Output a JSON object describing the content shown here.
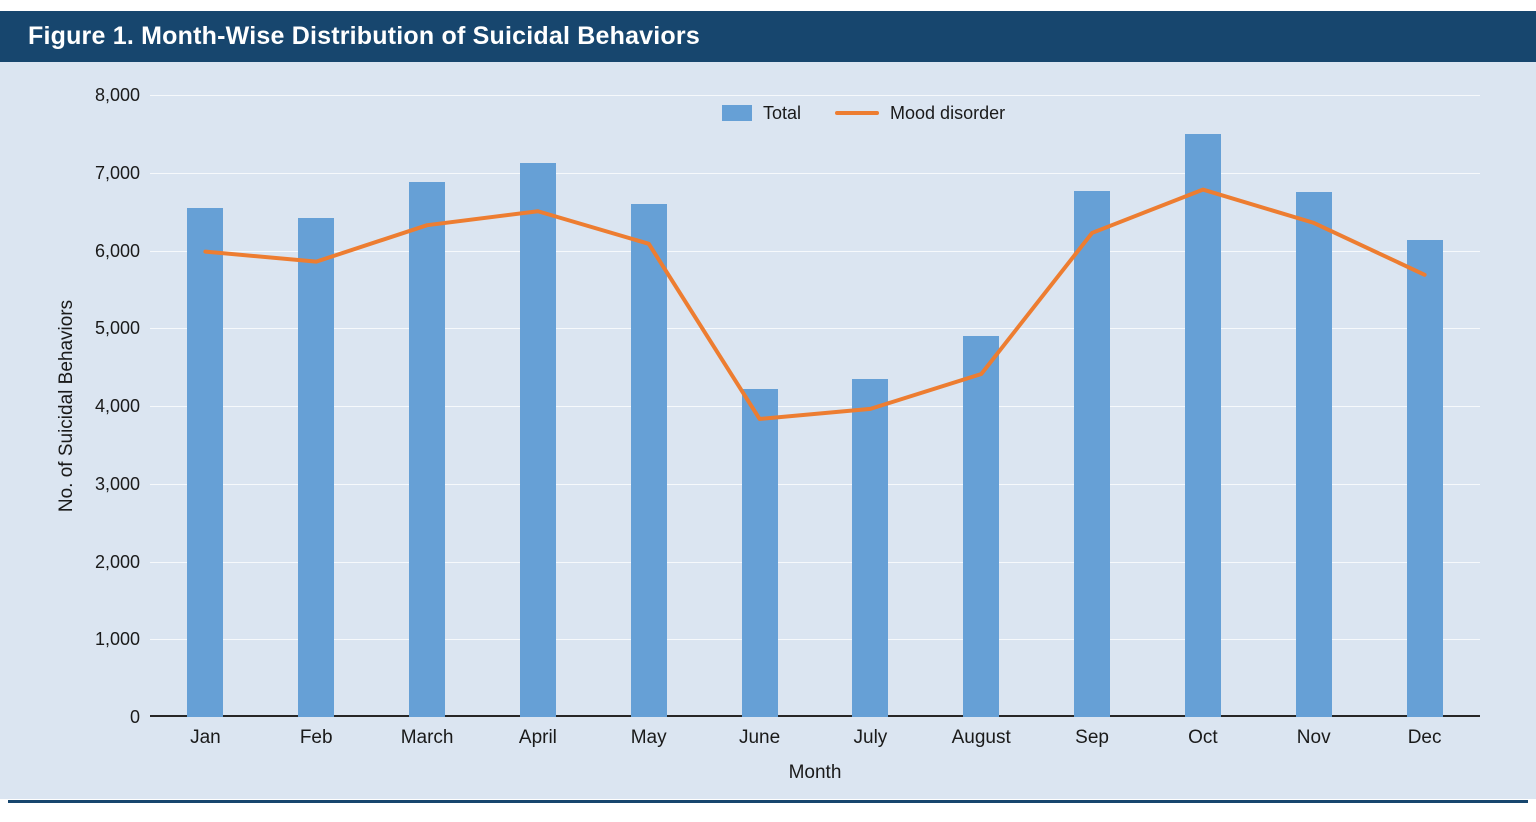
{
  "title": "Figure 1. Month-Wise Distribution of Suicidal Behaviors",
  "colors": {
    "title_bar": "#17466e",
    "chart_bg": "#dbe5f1",
    "bar": "#66a0d6",
    "line": "#ed7d31",
    "axis_text": "#1a1a1a"
  },
  "legend": [
    {
      "label": "Total",
      "type": "bar"
    },
    {
      "label": "Mood disorder",
      "type": "line"
    }
  ],
  "chart_data": {
    "type": "bar",
    "categories": [
      "Jan",
      "Feb",
      "March",
      "April",
      "May",
      "June",
      "July",
      "August",
      "Sep",
      "Oct",
      "Nov",
      "Dec"
    ],
    "series": [
      {
        "name": "Total",
        "type": "bar",
        "values": [
          6550,
          6420,
          6880,
          7130,
          6600,
          4220,
          4350,
          4900,
          6760,
          7500,
          6750,
          6130
        ]
      },
      {
        "name": "Mood disorder",
        "type": "line",
        "values": [
          5980,
          5850,
          6320,
          6500,
          6080,
          3820,
          3950,
          4400,
          6220,
          6780,
          6350,
          5680
        ]
      }
    ],
    "title": "Figure 1. Month-Wise Distribution of Suicidal Behaviors",
    "xlabel": "Month",
    "ylabel": "No. of Suicidal Behaviors",
    "ylim": [
      0,
      8000
    ],
    "ytick_step": 1000,
    "grid": true,
    "legend_position": "top-center"
  }
}
